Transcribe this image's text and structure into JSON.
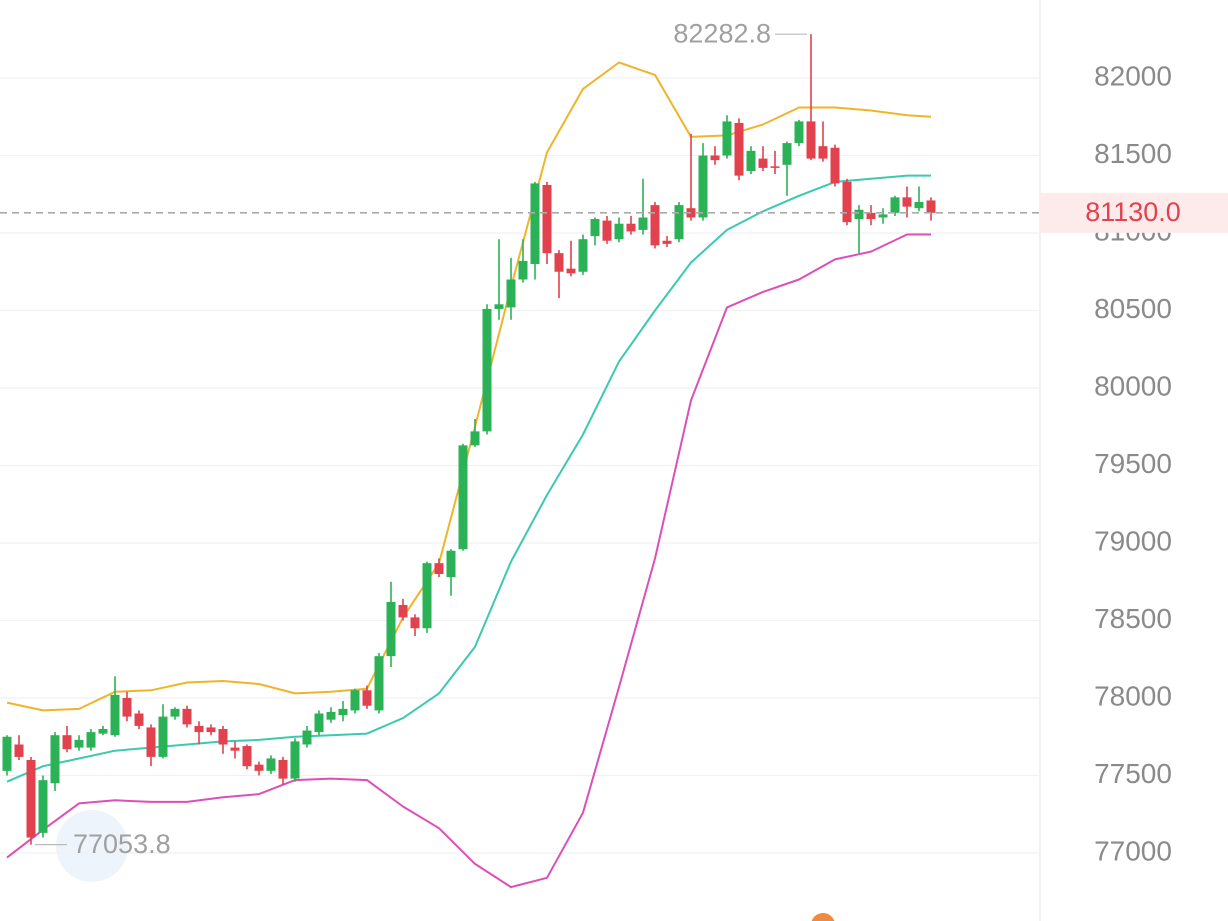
{
  "chart_data": {
    "type": "candlestick",
    "ylim": [
      76600,
      82500
    ],
    "yticks": [
      77000,
      77500,
      78000,
      78500,
      79000,
      79500,
      80000,
      80500,
      81000,
      81500,
      82000
    ],
    "grid": true,
    "up_color": "#2bb256",
    "down_color": "#e2424d",
    "open": [
      77530,
      77700,
      77600,
      77130,
      77450,
      77760,
      77680,
      77680,
      77770,
      77760,
      78000,
      77900,
      77810,
      77620,
      77880,
      77930,
      77820,
      77810,
      77800,
      77680,
      77690,
      77570,
      77530,
      77600,
      77480,
      77700,
      77780,
      77860,
      77890,
      77920,
      78050,
      77920,
      78270,
      78600,
      78520,
      78450,
      78870,
      78780,
      78960,
      79630,
      79720,
      80510,
      80520,
      80700,
      80800,
      81310,
      80870,
      80770,
      80750,
      80980,
      81080,
      80960,
      81060,
      81020,
      81180,
      80950,
      80960,
      81160,
      81100,
      81500,
      81500,
      81710,
      81400,
      81480,
      81430,
      81440,
      81580,
      81720,
      81560,
      81550,
      81330,
      81090,
      81130,
      81100,
      81130,
      81230,
      81160,
      81210
    ],
    "high": [
      77760,
      77760,
      77620,
      77500,
      77780,
      77820,
      77760,
      77800,
      77820,
      78140,
      78040,
      77920,
      77830,
      77960,
      77940,
      77950,
      77850,
      77830,
      77820,
      77720,
      77700,
      77590,
      77630,
      77620,
      77740,
      77820,
      77920,
      77940,
      77980,
      78060,
      78080,
      78290,
      78750,
      78640,
      78540,
      78880,
      78900,
      78960,
      79640,
      79800,
      80540,
      80960,
      80840,
      80960,
      81330,
      81330,
      80890,
      80950,
      80990,
      81100,
      81110,
      81100,
      81110,
      81350,
      81200,
      80980,
      81200,
      81640,
      81580,
      81560,
      81760,
      81740,
      81560,
      81560,
      81530,
      81590,
      81730,
      82282.8,
      81720,
      81570,
      81350,
      81180,
      81180,
      81160,
      81240,
      81300,
      81300,
      81230
    ],
    "low": [
      77500,
      77600,
      77053.8,
      77100,
      77400,
      77650,
      77660,
      77660,
      77760,
      77750,
      77850,
      77800,
      77560,
      77610,
      77860,
      77810,
      77700,
      77760,
      77640,
      77610,
      77540,
      77500,
      77510,
      77440,
      77460,
      77680,
      77760,
      77840,
      77850,
      77900,
      77930,
      77900,
      78200,
      78500,
      78400,
      78420,
      78780,
      78660,
      78950,
      79620,
      79700,
      80440,
      80440,
      80680,
      80700,
      80800,
      80580,
      80720,
      80730,
      80920,
      80930,
      80940,
      80990,
      80990,
      80900,
      80910,
      80940,
      81080,
      81080,
      81440,
      81480,
      81340,
      81380,
      81400,
      81380,
      81240,
      81560,
      81470,
      81460,
      81300,
      81050,
      80870,
      81050,
      81060,
      81110,
      81100,
      81140,
      81080
    ],
    "close": [
      77750,
      77620,
      77100,
      77470,
      77760,
      77670,
      77730,
      77780,
      77800,
      78020,
      77880,
      77820,
      77620,
      77880,
      77930,
      77830,
      77780,
      77780,
      77700,
      77660,
      77560,
      77530,
      77610,
      77480,
      77720,
      77790,
      77900,
      77910,
      77930,
      78050,
      77950,
      78270,
      78620,
      78520,
      78450,
      78870,
      78800,
      78950,
      79630,
      79720,
      80510,
      80540,
      80700,
      80820,
      81320,
      80870,
      80750,
      80740,
      80960,
      81090,
      80950,
      81060,
      81010,
      81100,
      80920,
      80930,
      81180,
      81100,
      81500,
      81470,
      81720,
      81370,
      81530,
      81420,
      81420,
      81580,
      81720,
      81480,
      81480,
      81320,
      81070,
      81150,
      81090,
      81120,
      81230,
      81170,
      81200,
      81130
    ],
    "bands": [
      {
        "color": "#f0b429",
        "x": [
          0,
          3,
          6,
          9,
          12,
          15,
          18,
          21,
          24,
          27,
          30,
          33,
          36,
          39,
          42,
          45,
          48,
          51,
          54,
          57,
          60,
          63,
          66,
          69,
          72,
          75,
          77
        ],
        "values": [
          77970,
          77920,
          77930,
          78040,
          78050,
          78100,
          78110,
          78090,
          78030,
          78040,
          78060,
          78520,
          78870,
          79750,
          80650,
          81520,
          81930,
          82100,
          82020,
          81620,
          81630,
          81700,
          81810,
          81810,
          81790,
          81760,
          81750
        ]
      },
      {
        "color": "#3cc9b0",
        "x": [
          0,
          3,
          6,
          9,
          12,
          15,
          18,
          21,
          24,
          27,
          30,
          33,
          36,
          39,
          42,
          45,
          48,
          51,
          54,
          57,
          60,
          63,
          66,
          69,
          72,
          75,
          77
        ],
        "values": [
          77460,
          77560,
          77610,
          77660,
          77680,
          77700,
          77720,
          77730,
          77750,
          77760,
          77770,
          77870,
          78030,
          78330,
          78880,
          79310,
          79700,
          80170,
          80500,
          80810,
          81020,
          81140,
          81240,
          81330,
          81350,
          81370,
          81370
        ]
      },
      {
        "color": "#dd4fb8",
        "x": [
          0,
          3,
          6,
          9,
          12,
          15,
          18,
          21,
          24,
          27,
          30,
          33,
          36,
          39,
          42,
          45,
          48,
          51,
          54,
          57,
          60,
          63,
          66,
          69,
          72,
          75,
          77
        ],
        "values": [
          76970,
          77150,
          77320,
          77340,
          77330,
          77330,
          77360,
          77380,
          77470,
          77480,
          77470,
          77300,
          77160,
          76930,
          76780,
          76840,
          77260,
          78070,
          78900,
          79920,
          80520,
          80620,
          80700,
          80830,
          80880,
          80990,
          80990
        ]
      }
    ],
    "max_price": 82282.8,
    "min_price": 77053.8,
    "last_price": {
      "value": 81130,
      "label": "81130.0"
    },
    "last_price_color": "#e2424d"
  }
}
